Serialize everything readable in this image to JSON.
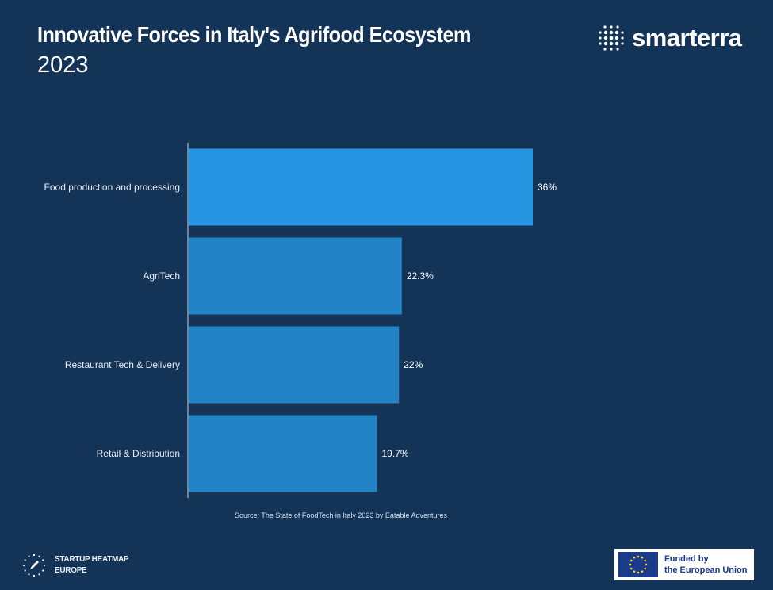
{
  "header": {
    "title": "Innovative Forces in Italy's Agrifood Ecosystem",
    "subtitle": "2023"
  },
  "brand": {
    "name": "smarterra",
    "icon": "dot-grid-icon"
  },
  "chart_data": {
    "type": "bar",
    "orientation": "horizontal",
    "categories": [
      "Food production and processing",
      "AgriTech",
      "Restaurant Tech & Delivery",
      "Retail & Distribution"
    ],
    "values": [
      36,
      22.3,
      22,
      19.7
    ],
    "value_labels": [
      "36%",
      "22.3%",
      "22%",
      "19.7%"
    ],
    "unit": "%",
    "xlim": [
      0,
      36
    ],
    "grid": false,
    "colors": {
      "highlight": "#2696e3",
      "bar": "#2383c6"
    }
  },
  "footer": {
    "source": "Source: The State of FoodTech in Italy 2023 by Eatable Adventures",
    "heatmap_line1": "STARTUP HEATMAP",
    "heatmap_line2": "EUROPE",
    "eu_line1": "Funded by",
    "eu_line2": "the European Union"
  },
  "colors": {
    "background": "#133457",
    "eu_blue": "#1a3a8a",
    "eu_star": "#ffd617"
  }
}
